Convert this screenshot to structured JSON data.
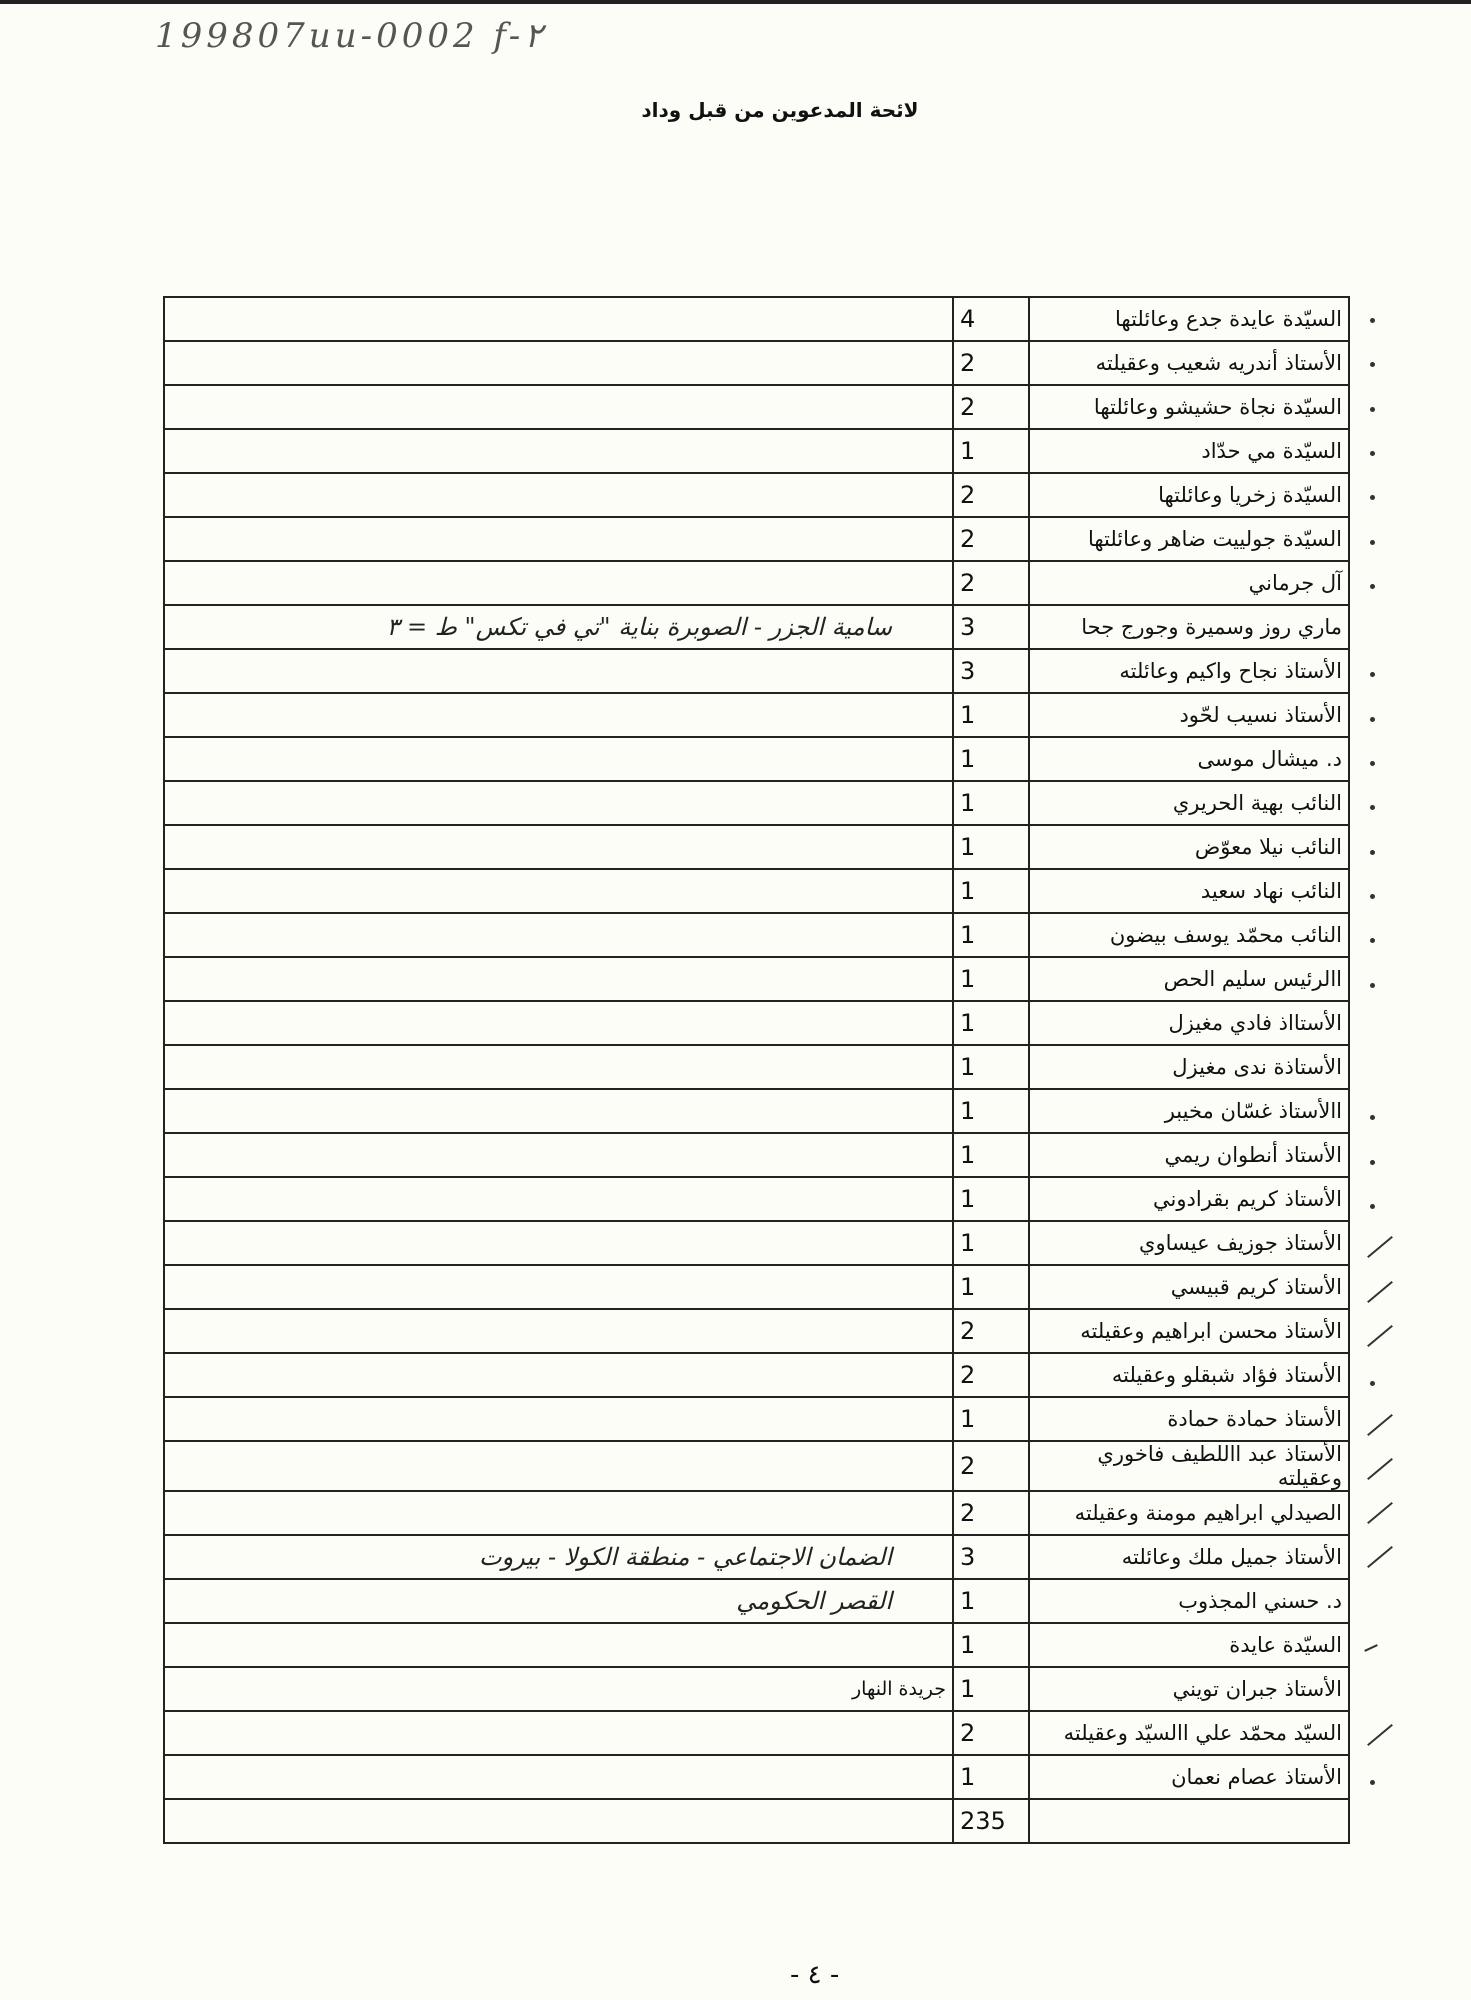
{
  "reference_code": "199807uu-0002 f-٢",
  "title": "لائحة المدعوين من قبل وداد",
  "rows": [
    {
      "name": "السيّدة عايدة جدع وعائلتها",
      "count": "4",
      "note": "",
      "mark": "dot"
    },
    {
      "name": "الأستاذ أندريه شعيب وعقيلته",
      "count": "2",
      "note": "",
      "mark": "dot"
    },
    {
      "name": "السيّدة نجاة حشيشو وعائلتها",
      "count": "2",
      "note": "",
      "mark": "dot"
    },
    {
      "name": "السيّدة مي حدّاد",
      "count": "1",
      "note": "",
      "mark": "dot"
    },
    {
      "name": "السيّدة زخريا وعائلتها",
      "count": "2",
      "note": "",
      "mark": "dot"
    },
    {
      "name": "السيّدة جولييت ضاهر وعائلتها",
      "count": "2",
      "note": "",
      "mark": "dot"
    },
    {
      "name": "آل جرماني",
      "count": "2",
      "note": "",
      "mark": "dot"
    },
    {
      "name": "ماري روز وسميرة وجورج جحا",
      "count": "3",
      "note": "سامية الجزر - الصوبرة بناية \"تي في تكس\" ط = ٣",
      "note_style": "hand",
      "mark": ""
    },
    {
      "name": "الأستاذ نجاح واكيم وعائلته",
      "count": "3",
      "note": "",
      "mark": "dot"
    },
    {
      "name": "الأستاذ نسيب لحّود",
      "count": "1",
      "note": "",
      "mark": "dot"
    },
    {
      "name": "د. ميشال موسى",
      "count": "1",
      "note": "",
      "mark": "dot"
    },
    {
      "name": "النائب بهية الحريري",
      "count": "1",
      "note": "",
      "mark": "dot"
    },
    {
      "name": "النائب نيلا معوّض",
      "count": "1",
      "note": "",
      "mark": "dot"
    },
    {
      "name": "النائب نهاد سعيد",
      "count": "1",
      "note": "",
      "mark": "dot"
    },
    {
      "name": "النائب محمّد يوسف بيضون",
      "count": "1",
      "note": "",
      "mark": "dot"
    },
    {
      "name": "االرئيس سليم الحص",
      "count": "1",
      "note": "",
      "mark": "dot"
    },
    {
      "name": "الأستااذ فادي مغيزل",
      "count": "1",
      "note": "",
      "mark": ""
    },
    {
      "name": "الأستاذة ندى مغيزل",
      "count": "1",
      "note": "",
      "mark": ""
    },
    {
      "name": "االأستاذ غسّان مخيبر",
      "count": "1",
      "note": "",
      "mark": "dot"
    },
    {
      "name": "الأستاذ أنطوان ريمي",
      "count": "1",
      "note": "",
      "mark": "dot"
    },
    {
      "name": "الأستاذ كريم بقرادوني",
      "count": "1",
      "note": "",
      "mark": "dot"
    },
    {
      "name": "الأستاذ جوزيف عيساوي",
      "count": "1",
      "note": "",
      "mark": "slash"
    },
    {
      "name": "الأستاذ كريم قبيسي",
      "count": "1",
      "note": "",
      "mark": "slash"
    },
    {
      "name": "الأستاذ محسن ابراهيم وعقيلته",
      "count": "2",
      "note": "",
      "mark": "slash"
    },
    {
      "name": "الأستاذ فؤاد شبقلو وعقيلته",
      "count": "2",
      "note": "",
      "mark": "dot"
    },
    {
      "name": "الأستاذ حمادة حمادة",
      "count": "1",
      "note": "",
      "mark": "slash"
    },
    {
      "name": "الأستاذ عبد االلطيف فاخوري وعقيلته",
      "count": "2",
      "note": "",
      "mark": "slash"
    },
    {
      "name": "الصيدلي ابراهيم مومنة وعقيلته",
      "count": "2",
      "note": "",
      "mark": "slash"
    },
    {
      "name": "الأستاذ جميل ملك وعائلته",
      "count": "3",
      "note": "الضمان الاجتماعي - منطقة الكولا - بيروت",
      "note_style": "hand",
      "mark": "slash"
    },
    {
      "name": "د. حسني المجذوب",
      "count": "1",
      "note": "القصر الحكومي",
      "note_style": "hand",
      "mark": ""
    },
    {
      "name": "السيّدة عايدة",
      "count": "1",
      "note": "",
      "mark": "hook"
    },
    {
      "name": "الأستاذ جبران تويني",
      "count": "1",
      "note": "جريدة النهار",
      "note_style": "print",
      "mark": ""
    },
    {
      "name": "السيّد محمّد علي االسيّد وعقيلته",
      "count": "2",
      "note": "",
      "mark": "slash"
    },
    {
      "name": "الأستاذ عصام نعمان",
      "count": "1",
      "note": "",
      "mark": "dot"
    }
  ],
  "total": "235",
  "page_number": "- ٤ -"
}
